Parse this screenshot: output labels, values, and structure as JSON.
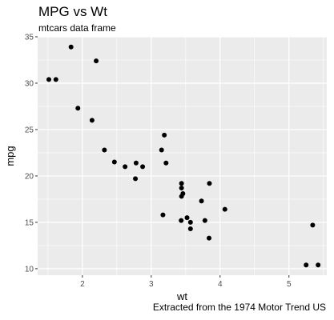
{
  "chart_data": {
    "type": "scatter",
    "title": "MPG vs Wt",
    "subtitle": "mtcars data frame",
    "caption": "Extracted from the 1974 Motor Trend US",
    "xlabel": "wt",
    "ylabel": "mpg",
    "xlim": [
      1.35,
      5.55
    ],
    "ylim": [
      9.3,
      35.0
    ],
    "x_ticks": [
      2,
      3,
      4,
      5
    ],
    "y_ticks": [
      10,
      15,
      20,
      25,
      30,
      35
    ],
    "grid": true,
    "legend": "none",
    "colors": {
      "panel": "#EBEBEB",
      "grid_major": "#FFFFFF",
      "point": "#000000",
      "tick_text": "#4D4D4D"
    },
    "points": [
      {
        "x": 2.62,
        "y": 21.0
      },
      {
        "x": 2.875,
        "y": 21.0
      },
      {
        "x": 2.32,
        "y": 22.8
      },
      {
        "x": 3.215,
        "y": 21.4
      },
      {
        "x": 3.44,
        "y": 18.7
      },
      {
        "x": 3.46,
        "y": 18.1
      },
      {
        "x": 3.57,
        "y": 14.3
      },
      {
        "x": 3.19,
        "y": 24.4
      },
      {
        "x": 3.15,
        "y": 22.8
      },
      {
        "x": 3.44,
        "y": 19.2
      },
      {
        "x": 3.44,
        "y": 17.8
      },
      {
        "x": 4.07,
        "y": 16.4
      },
      {
        "x": 3.73,
        "y": 17.3
      },
      {
        "x": 3.78,
        "y": 15.2
      },
      {
        "x": 5.25,
        "y": 10.4
      },
      {
        "x": 5.424,
        "y": 10.4
      },
      {
        "x": 5.345,
        "y": 14.7
      },
      {
        "x": 2.2,
        "y": 32.4
      },
      {
        "x": 1.615,
        "y": 30.4
      },
      {
        "x": 1.835,
        "y": 33.9
      },
      {
        "x": 2.465,
        "y": 21.5
      },
      {
        "x": 3.52,
        "y": 15.5
      },
      {
        "x": 3.435,
        "y": 15.2
      },
      {
        "x": 3.84,
        "y": 13.3
      },
      {
        "x": 3.845,
        "y": 19.2
      },
      {
        "x": 1.935,
        "y": 27.3
      },
      {
        "x": 2.14,
        "y": 26.0
      },
      {
        "x": 1.513,
        "y": 30.4
      },
      {
        "x": 3.17,
        "y": 15.8
      },
      {
        "x": 2.77,
        "y": 19.7
      },
      {
        "x": 3.57,
        "y": 15.0
      },
      {
        "x": 2.78,
        "y": 21.4
      }
    ]
  }
}
